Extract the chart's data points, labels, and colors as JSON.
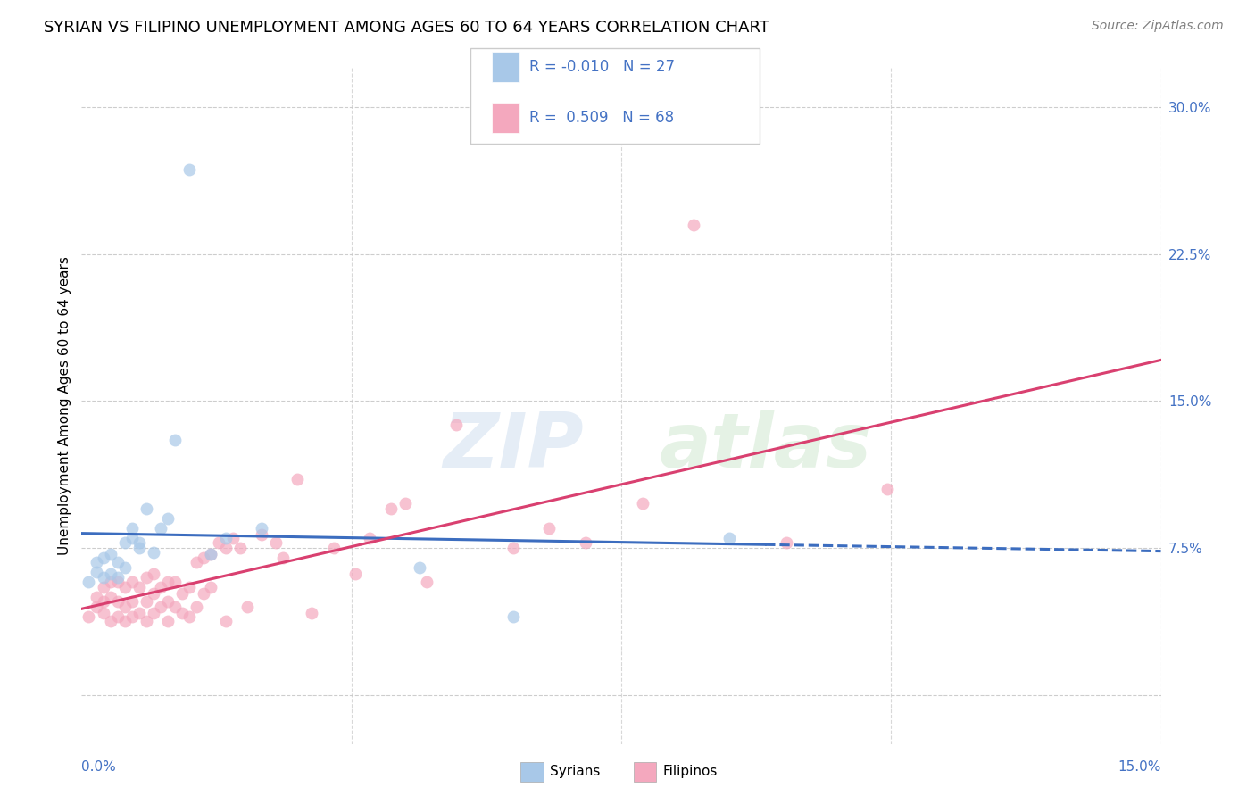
{
  "title": "SYRIAN VS FILIPINO UNEMPLOYMENT AMONG AGES 60 TO 64 YEARS CORRELATION CHART",
  "source": "Source: ZipAtlas.com",
  "ylabel": "Unemployment Among Ages 60 to 64 years",
  "xlim": [
    0.0,
    0.15
  ],
  "ylim": [
    -0.025,
    0.32
  ],
  "ytick_positions": [
    0.0,
    0.075,
    0.15,
    0.225,
    0.3
  ],
  "ytick_labels": [
    "",
    "7.5%",
    "15.0%",
    "22.5%",
    "30.0%"
  ],
  "syrian_R": "-0.010",
  "syrian_N": "27",
  "filipino_R": "0.509",
  "filipino_N": "68",
  "syrian_color": "#a8c8e8",
  "filipino_color": "#f4a8be",
  "syrian_line_color": "#3c6dbf",
  "filipino_line_color": "#d94070",
  "legend_text_color": "#4472c4",
  "grid_color": "#c8c8c8",
  "background_color": "#ffffff",
  "syrian_scatter_x": [
    0.001,
    0.002,
    0.002,
    0.003,
    0.003,
    0.004,
    0.004,
    0.005,
    0.005,
    0.006,
    0.006,
    0.007,
    0.007,
    0.008,
    0.008,
    0.009,
    0.01,
    0.011,
    0.012,
    0.013,
    0.015,
    0.018,
    0.02,
    0.025,
    0.047,
    0.06,
    0.09
  ],
  "syrian_scatter_y": [
    0.058,
    0.063,
    0.068,
    0.06,
    0.07,
    0.062,
    0.072,
    0.06,
    0.068,
    0.065,
    0.078,
    0.08,
    0.085,
    0.075,
    0.078,
    0.095,
    0.073,
    0.085,
    0.09,
    0.13,
    0.268,
    0.072,
    0.08,
    0.085,
    0.065,
    0.04,
    0.08
  ],
  "filipino_scatter_x": [
    0.001,
    0.002,
    0.002,
    0.003,
    0.003,
    0.003,
    0.004,
    0.004,
    0.004,
    0.005,
    0.005,
    0.005,
    0.006,
    0.006,
    0.006,
    0.007,
    0.007,
    0.007,
    0.008,
    0.008,
    0.009,
    0.009,
    0.009,
    0.01,
    0.01,
    0.01,
    0.011,
    0.011,
    0.012,
    0.012,
    0.012,
    0.013,
    0.013,
    0.014,
    0.014,
    0.015,
    0.015,
    0.016,
    0.016,
    0.017,
    0.017,
    0.018,
    0.018,
    0.019,
    0.02,
    0.02,
    0.021,
    0.022,
    0.023,
    0.025,
    0.027,
    0.028,
    0.03,
    0.032,
    0.035,
    0.038,
    0.04,
    0.043,
    0.045,
    0.048,
    0.052,
    0.06,
    0.065,
    0.07,
    0.078,
    0.085,
    0.098,
    0.112
  ],
  "filipino_scatter_y": [
    0.04,
    0.045,
    0.05,
    0.042,
    0.048,
    0.055,
    0.038,
    0.05,
    0.058,
    0.04,
    0.048,
    0.058,
    0.038,
    0.045,
    0.055,
    0.04,
    0.048,
    0.058,
    0.042,
    0.055,
    0.038,
    0.048,
    0.06,
    0.042,
    0.052,
    0.062,
    0.045,
    0.055,
    0.038,
    0.048,
    0.058,
    0.045,
    0.058,
    0.042,
    0.052,
    0.04,
    0.055,
    0.045,
    0.068,
    0.052,
    0.07,
    0.055,
    0.072,
    0.078,
    0.038,
    0.075,
    0.08,
    0.075,
    0.045,
    0.082,
    0.078,
    0.07,
    0.11,
    0.042,
    0.075,
    0.062,
    0.08,
    0.095,
    0.098,
    0.058,
    0.138,
    0.075,
    0.085,
    0.078,
    0.098,
    0.24,
    0.078,
    0.105
  ],
  "watermark_zip": "ZIP",
  "watermark_atlas": "atlas",
  "title_fontsize": 13,
  "axis_label_fontsize": 11,
  "tick_fontsize": 11,
  "legend_fontsize": 12,
  "source_fontsize": 10,
  "scatter_size": 100,
  "scatter_alpha": 0.7
}
